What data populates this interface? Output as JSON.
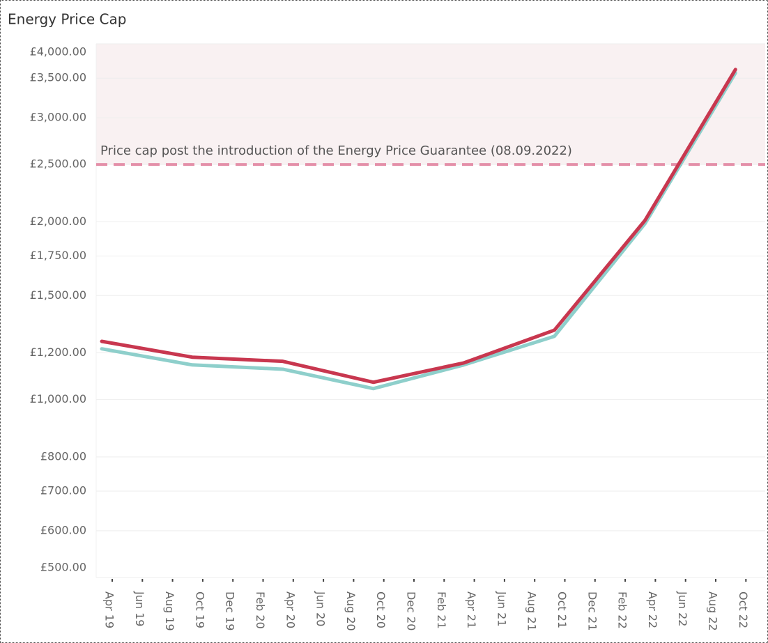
{
  "chart_data": {
    "type": "line",
    "title": "Energy Price Cap",
    "x": [
      "Apr 19",
      "Oct 19",
      "Apr 20",
      "Oct 20",
      "Apr 21",
      "Oct 21",
      "Apr 22",
      "Oct 22"
    ],
    "series": [
      {
        "color": "#c8374f",
        "values": [
          1255,
          1180,
          1161,
          1070,
          1154,
          1311,
          2010,
          3620
        ]
      },
      {
        "color": "#8ecfcb",
        "values": [
          1219,
          1145,
          1126,
          1044,
          1145,
          1280,
          1985,
          3572
        ]
      }
    ],
    "xticks": [
      "Apr 19",
      "Jun 19",
      "Aug 19",
      "Oct 19",
      "Dec 19",
      "Feb 20",
      "Apr 20",
      "Jun 20",
      "Aug 20",
      "Oct 20",
      "Dec 20",
      "Feb 21",
      "Apr 21",
      "Jun 21",
      "Aug 21",
      "Oct 21",
      "Dec 21",
      "Feb 22",
      "Apr 22",
      "Jun 22",
      "Aug 22",
      "Oct 22"
    ],
    "ylim": [
      500,
      4000
    ],
    "log_y": true,
    "grid": true,
    "yticks": [
      {
        "value": 500,
        "label": "£500.00"
      },
      {
        "value": 600,
        "label": "£600.00"
      },
      {
        "value": 700,
        "label": "£700.00"
      },
      {
        "value": 800,
        "label": "£800.00"
      },
      {
        "value": 1000,
        "label": "£1,000.00"
      },
      {
        "value": 1200,
        "label": "£1,200.00"
      },
      {
        "value": 1500,
        "label": "£1,500.00"
      },
      {
        "value": 1750,
        "label": "£1,750.00"
      },
      {
        "value": 2000,
        "label": "£2,000.00"
      },
      {
        "value": 2500,
        "label": "£2,500.00"
      },
      {
        "value": 3000,
        "label": "£3,000.00"
      },
      {
        "value": 3500,
        "label": "£3,500.00"
      },
      {
        "value": 4000,
        "label": "£4,000.00"
      }
    ],
    "reference_line": {
      "value": 2500,
      "label": "Price cap post the introduction of the Energy Price Guarantee (08.09.2022)",
      "color": "#e48fa8",
      "band_color": "#f9f1f2"
    }
  }
}
